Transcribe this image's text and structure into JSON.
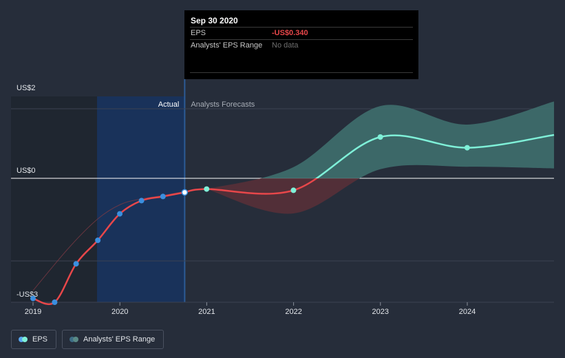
{
  "tooltip": {
    "title": "Sep 30 2020",
    "rows": [
      {
        "label": "EPS",
        "value": "-US$0.340"
      },
      {
        "label": "Analysts' EPS Range",
        "value": "No data"
      }
    ]
  },
  "legend": {
    "items": [
      {
        "label": "EPS",
        "color_a": "#59a6f0",
        "color_b": "#7ff0d8"
      },
      {
        "label": "Analysts' EPS Range",
        "color_a": "#3d6d86",
        "color_b": "#5a8a86"
      }
    ]
  },
  "colors": {
    "background": "#262d3a",
    "actual_line": "#e8474a",
    "actual_point": "#3b8fdf",
    "forecast_line": "#7ff0d8",
    "range_positive": "#3f6f6e",
    "range_negative": "#5a3038",
    "actual_band": "#19325a"
  },
  "chart_data": {
    "type": "line",
    "y_tick_labels": [
      {
        "value": 2,
        "label": "US$2"
      },
      {
        "value": 0,
        "label": "US$0"
      },
      {
        "value": -3,
        "label": "-US$3"
      }
    ],
    "x_tick_labels": [
      "2019",
      "2020",
      "2021",
      "2022",
      "2023",
      "2024"
    ],
    "ylim": [
      -3,
      2
    ],
    "section_labels": {
      "actual": "Actual",
      "forecast": "Analysts Forecasts"
    },
    "series": [
      {
        "name": "EPS",
        "style": "actual",
        "points": [
          {
            "x": "2019-01-01",
            "y": -2.91
          },
          {
            "x": "2019-03-31",
            "y": -3.0
          },
          {
            "x": "2019-06-30",
            "y": -2.07
          },
          {
            "x": "2019-09-30",
            "y": -1.5
          },
          {
            "x": "2019-12-31",
            "y": -0.86
          },
          {
            "x": "2020-03-31",
            "y": -0.54
          },
          {
            "x": "2020-06-30",
            "y": -0.44
          },
          {
            "x": "2020-09-30",
            "y": -0.34
          }
        ]
      },
      {
        "name": "EPS",
        "style": "forecast",
        "points": [
          {
            "x": "2020-12-31",
            "y": -0.26
          },
          {
            "x": "2021-12-31",
            "y": -0.29
          },
          {
            "x": "2022-12-31",
            "y": 1.0
          },
          {
            "x": "2023-12-31",
            "y": 0.74
          },
          {
            "x": "2024-12-31",
            "y": 1.05
          }
        ]
      }
    ],
    "forecast_range": [
      {
        "x": "2020-12-31",
        "low": -0.26,
        "high": -0.26
      },
      {
        "x": "2021-12-31",
        "low": -0.85,
        "high": 0.27
      },
      {
        "x": "2022-12-31",
        "low": 0.22,
        "high": 1.75
      },
      {
        "x": "2023-12-31",
        "low": 0.28,
        "high": 1.3
      },
      {
        "x": "2024-12-31",
        "low": 0.24,
        "high": 1.86
      }
    ],
    "highlight": {
      "x": "2020-09-30",
      "y": -0.34
    },
    "grid": true,
    "legend_position": "bottom-left"
  }
}
